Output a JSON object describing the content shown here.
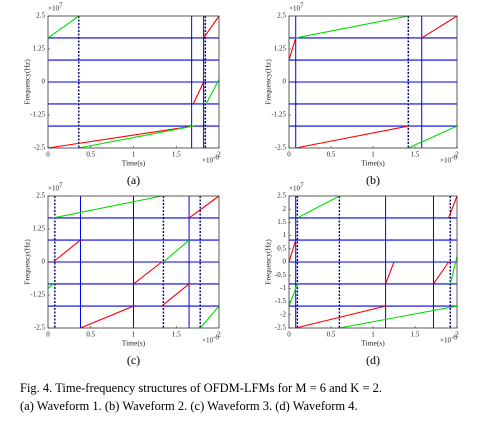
{
  "chart_data": [
    {
      "type": "line",
      "subtitle": "(a)",
      "xlabel": "Time(s)",
      "ylabel": "Frequency(Hz)",
      "x_multiplier": {
        "base": "×10",
        "exponent": "-6"
      },
      "y_multiplier": {
        "base": "×10",
        "exponent": "7"
      },
      "xlim": [
        0,
        2
      ],
      "ylim": [
        -2.5,
        2.5
      ],
      "xticks": [
        0,
        0.5,
        1,
        1.5,
        2
      ],
      "yticks": [
        -2.5,
        -1.25,
        0,
        1.25,
        2.5
      ],
      "hlines": [
        -1.67,
        -0.83,
        0,
        0.83,
        1.67
      ],
      "vlines": [
        1.68,
        1.82
      ],
      "vlines_dotted": [
        0.36,
        1.84
      ],
      "series": [
        {
          "color": "#ff0000",
          "x": [
            0,
            1.7,
            null,
            1.7,
            1.82,
            null,
            1.82,
            2
          ],
          "values": [
            -2.5,
            -1.67,
            null,
            -0.83,
            0,
            null,
            1.67,
            2.5
          ]
        },
        {
          "color": "#00e000",
          "x": [
            0,
            0.36,
            null,
            0.36,
            1.7,
            null,
            1.85,
            2
          ],
          "values": [
            1.67,
            2.5,
            null,
            -2.5,
            -1.67,
            null,
            -0.83,
            0.1
          ]
        }
      ]
    },
    {
      "type": "line",
      "subtitle": "(b)",
      "xlabel": "Time(s)",
      "ylabel": "Frequency(Hz)",
      "x_multiplier": {
        "base": "×10",
        "exponent": "-6"
      },
      "y_multiplier": {
        "base": "×10",
        "exponent": "7"
      },
      "xlim": [
        0,
        2
      ],
      "ylim": [
        -2.5,
        2.5
      ],
      "xticks": [
        0,
        0.5,
        1,
        1.5,
        2
      ],
      "yticks": [
        -2.5,
        -1.25,
        0,
        1.25,
        2.5
      ],
      "hlines": [
        -1.67,
        -0.83,
        0,
        0.83,
        1.67
      ],
      "vlines": [
        0.08,
        1.58
      ],
      "vlines_dotted": [
        1.42
      ],
      "series": [
        {
          "color": "#ff0000",
          "x": [
            0,
            0.08,
            null,
            0.08,
            1.42,
            null,
            1.58,
            2
          ],
          "values": [
            0.83,
            1.67,
            null,
            -2.5,
            -1.67,
            null,
            1.67,
            2.5
          ]
        },
        {
          "color": "#00e000",
          "x": [
            0.08,
            1.42,
            null,
            1.42,
            2
          ],
          "values": [
            1.67,
            2.5,
            null,
            -2.5,
            -1.67
          ]
        }
      ]
    },
    {
      "type": "line",
      "subtitle": "(c)",
      "xlabel": "Time(s)",
      "ylabel": "Frequency(Hz)",
      "x_multiplier": {
        "base": "×10",
        "exponent": "-6"
      },
      "y_multiplier": {
        "base": "×10",
        "exponent": "7"
      },
      "xlim": [
        0,
        2
      ],
      "ylim": [
        -2.5,
        2.5
      ],
      "xticks": [
        0,
        0.5,
        1,
        1.5,
        2
      ],
      "yticks": [
        -2.5,
        -1.25,
        0,
        1.25,
        2.5
      ],
      "hlines": [
        -1.67,
        -0.83,
        0,
        0.83,
        1.67
      ],
      "vlines": [
        0.38,
        1.0,
        1.65
      ],
      "vlines_dotted": [
        0.08,
        1.35,
        1.78
      ],
      "series": [
        {
          "color": "#ff0000",
          "x": [
            0.06,
            0.38,
            null,
            0.38,
            1.0,
            null,
            1.0,
            1.33,
            null,
            1.33,
            1.65,
            null,
            1.65,
            2
          ],
          "values": [
            0,
            0.83,
            null,
            -2.5,
            -1.67,
            null,
            -0.83,
            0,
            null,
            -1.67,
            -0.83,
            null,
            1.67,
            2.5
          ]
        },
        {
          "color": "#00e000",
          "x": [
            0.06,
            1.33,
            null,
            0,
            0.06,
            null,
            1.35,
            1.65,
            null,
            1.78,
            2
          ],
          "values": [
            1.67,
            2.5,
            null,
            -1.0,
            -0.83,
            null,
            0,
            0.83,
            null,
            -2.5,
            -1.67
          ]
        }
      ]
    },
    {
      "type": "line",
      "subtitle": "(d)",
      "xlabel": "Time(s)",
      "ylabel": "Frequency(Hz)",
      "x_multiplier": {
        "base": "×10",
        "exponent": "-6"
      },
      "y_multiplier": {
        "base": "×10",
        "exponent": "7"
      },
      "xlim": [
        0,
        2
      ],
      "ylim": [
        -2.5,
        2.5
      ],
      "xticks": [
        0,
        0.5,
        1,
        1.5,
        2
      ],
      "yticks": [
        -2.5,
        -2,
        -1.5,
        -1,
        -0.5,
        0,
        0.5,
        1,
        1.5,
        2,
        2.5
      ],
      "hlines": [
        -1.67,
        -0.83,
        0,
        0.83,
        1.67
      ],
      "vlines": [
        0.08,
        1.15,
        1.72
      ],
      "vlines_dotted": [
        0.1,
        0.6,
        1.92
      ],
      "series": [
        {
          "color": "#ff0000",
          "x": [
            0,
            0.08,
            null,
            0.08,
            1.15,
            null,
            1.15,
            1.25,
            null,
            1.72,
            1.9,
            null,
            1.9,
            2
          ],
          "values": [
            0,
            0.83,
            null,
            -2.5,
            -1.67,
            null,
            -0.83,
            0,
            null,
            -0.83,
            0,
            null,
            1.67,
            2.5
          ]
        },
        {
          "color": "#00e000",
          "x": [
            0.1,
            0.6,
            null,
            0,
            0.1,
            null,
            0.6,
            2,
            null,
            1.92,
            2
          ],
          "values": [
            1.67,
            2.5,
            null,
            -1.67,
            -0.83,
            null,
            -2.5,
            -1.67,
            null,
            -0.83,
            0.2
          ]
        }
      ]
    }
  ],
  "caption": {
    "line1": "Fig. 4.   Time-frequency structures of OFDM-LFMs for M = 6 and K = 2.",
    "line2": "(a) Waveform 1. (b) Waveform 2. (c) Waveform 3. (d) Waveform 4."
  }
}
